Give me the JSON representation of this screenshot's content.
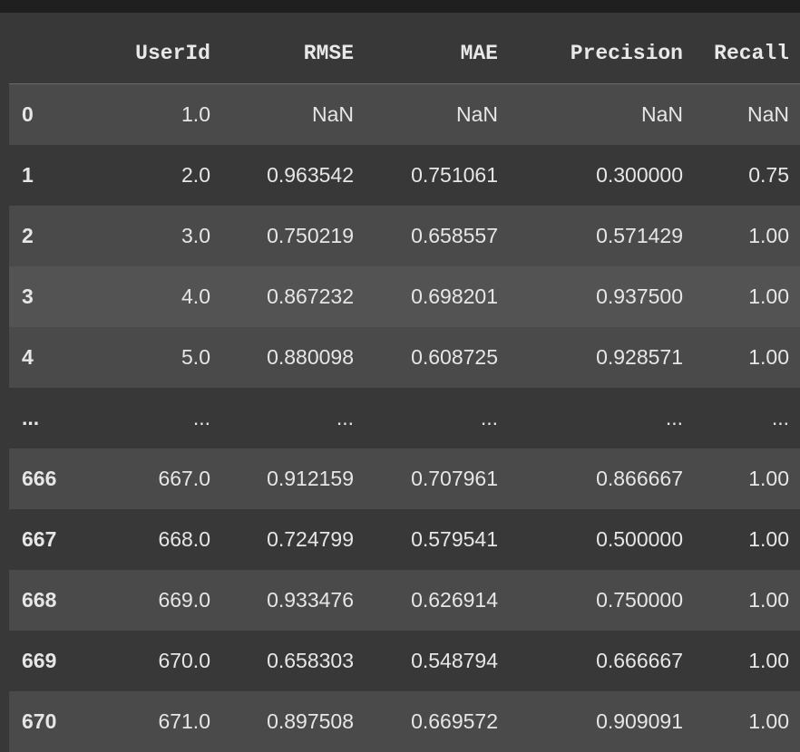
{
  "table": {
    "columns": [
      "",
      "UserId",
      "RMSE",
      "MAE",
      "Precision",
      "Recall"
    ],
    "rows": [
      {
        "index": "0",
        "UserId": "1.0",
        "RMSE": "NaN",
        "MAE": "NaN",
        "Precision": "NaN",
        "Recall": "NaN"
      },
      {
        "index": "1",
        "UserId": "2.0",
        "RMSE": "0.963542",
        "MAE": "0.751061",
        "Precision": "0.300000",
        "Recall": "0.75"
      },
      {
        "index": "2",
        "UserId": "3.0",
        "RMSE": "0.750219",
        "MAE": "0.658557",
        "Precision": "0.571429",
        "Recall": "1.00"
      },
      {
        "index": "3",
        "UserId": "4.0",
        "RMSE": "0.867232",
        "MAE": "0.698201",
        "Precision": "0.937500",
        "Recall": "1.00"
      },
      {
        "index": "4",
        "UserId": "5.0",
        "RMSE": "0.880098",
        "MAE": "0.608725",
        "Precision": "0.928571",
        "Recall": "1.00"
      },
      {
        "index": "...",
        "UserId": "...",
        "RMSE": "...",
        "MAE": "...",
        "Precision": "...",
        "Recall": "..."
      },
      {
        "index": "666",
        "UserId": "667.0",
        "RMSE": "0.912159",
        "MAE": "0.707961",
        "Precision": "0.866667",
        "Recall": "1.00"
      },
      {
        "index": "667",
        "UserId": "668.0",
        "RMSE": "0.724799",
        "MAE": "0.579541",
        "Precision": "0.500000",
        "Recall": "1.00"
      },
      {
        "index": "668",
        "UserId": "669.0",
        "RMSE": "0.933476",
        "MAE": "0.626914",
        "Precision": "0.750000",
        "Recall": "1.00"
      },
      {
        "index": "669",
        "UserId": "670.0",
        "RMSE": "0.658303",
        "MAE": "0.548794",
        "Precision": "0.666667",
        "Recall": "1.00"
      },
      {
        "index": "670",
        "UserId": "671.0",
        "RMSE": "0.897508",
        "MAE": "0.669572",
        "Precision": "0.909091",
        "Recall": "1.00"
      }
    ]
  },
  "colors": {
    "background": "#383838",
    "row_stripe": "#4a4a4a",
    "row_hover": "#535353",
    "text": "#e6e6e6"
  }
}
